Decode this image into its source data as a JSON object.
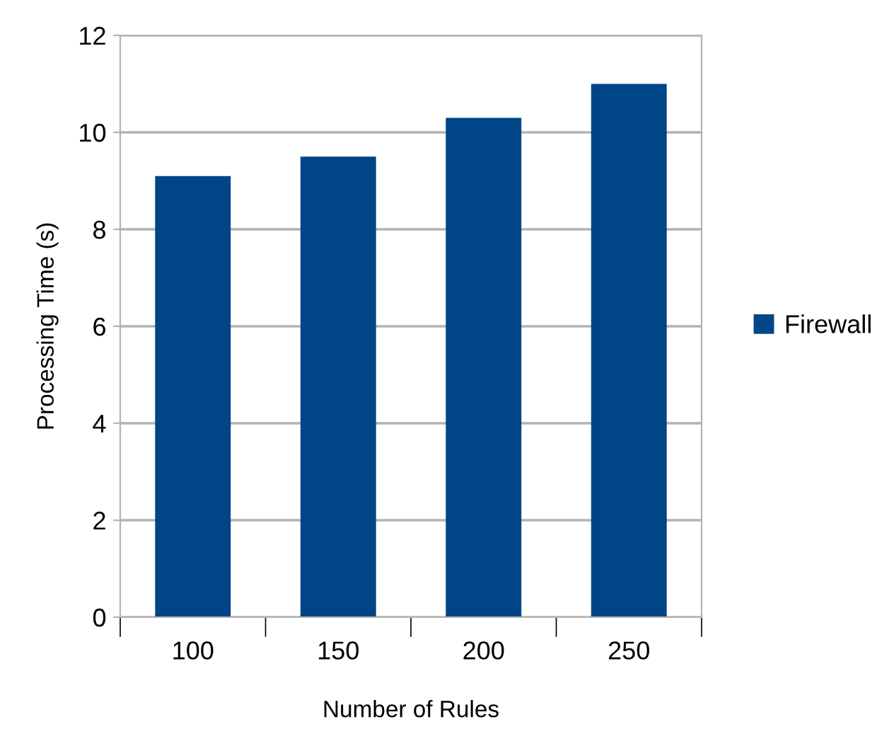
{
  "chart_data": {
    "type": "bar",
    "xlabel": "Number of Rules",
    "ylabel": "Processing Time (s)",
    "categories": [
      "100",
      "150",
      "200",
      "250"
    ],
    "series": [
      {
        "name": "Firewall",
        "color": "#004586",
        "values": [
          9.1,
          9.5,
          10.3,
          11.0
        ]
      }
    ],
    "ylim": [
      0,
      12
    ],
    "yticks": [
      0,
      2,
      4,
      6,
      8,
      10,
      12
    ],
    "grid": "y",
    "legend": "right"
  }
}
